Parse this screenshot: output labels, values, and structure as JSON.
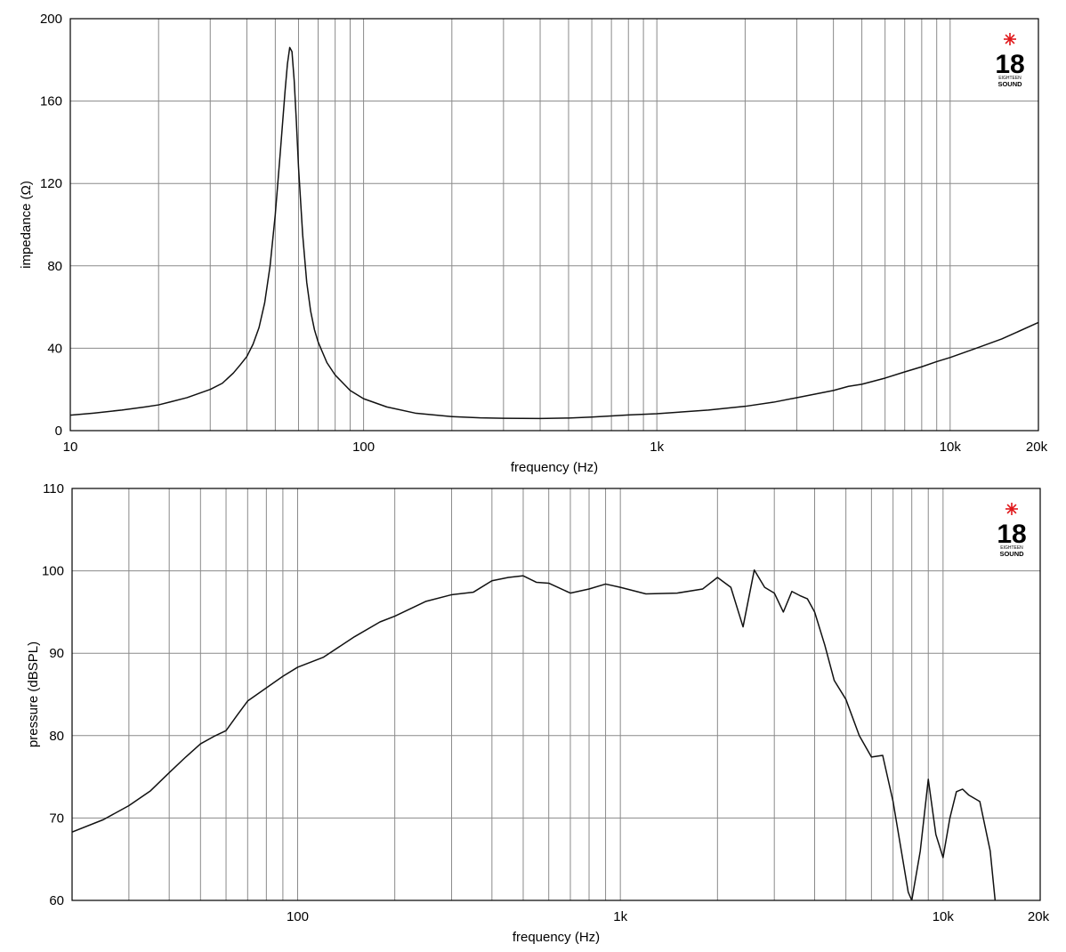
{
  "logo": {
    "digits": "18",
    "line1": "EIGHTEEN",
    "line2": "SOUND",
    "star_color": "#e0181b"
  },
  "chart_data": [
    {
      "type": "line",
      "title": "",
      "xlabel": "frequency (Hz)",
      "ylabel": "impedance (Ω)",
      "x_scale": "log",
      "xlim": [
        10,
        20000
      ],
      "ylim": [
        0,
        200
      ],
      "grid": true,
      "x_ticks": [
        {
          "value": 10,
          "label": "10"
        },
        {
          "value": 100,
          "label": "100"
        },
        {
          "value": 1000,
          "label": "1k"
        },
        {
          "value": 10000,
          "label": "10k"
        },
        {
          "value": 20000,
          "label": "20k"
        }
      ],
      "y_ticks": [
        0,
        40,
        80,
        120,
        160,
        200
      ],
      "series": [
        {
          "x": [
            10,
            12,
            15,
            18,
            20,
            22,
            25,
            28,
            30,
            33,
            36,
            38,
            40,
            42,
            44,
            46,
            48,
            50,
            52,
            54,
            55,
            56,
            57,
            58,
            59,
            60,
            62,
            64,
            66,
            68,
            70,
            75,
            80,
            90,
            100,
            120,
            150,
            200,
            250,
            300,
            400,
            500,
            600,
            700,
            800,
            1000,
            1200,
            1500,
            2000,
            2500,
            3000,
            4000,
            4500,
            5000,
            6000,
            7000,
            8000,
            9000,
            10000,
            12000,
            15000,
            20000
          ],
          "y": [
            7.5,
            8.5,
            10,
            11.5,
            12.5,
            14,
            16,
            18.5,
            20,
            23,
            28,
            32,
            36,
            42,
            50,
            62,
            80,
            105,
            135,
            165,
            178,
            186,
            184,
            170,
            150,
            128,
            95,
            72,
            58,
            49,
            43,
            33,
            27,
            19.5,
            15.5,
            11.5,
            8.5,
            6.8,
            6.2,
            6.0,
            5.9,
            6.1,
            6.6,
            7.1,
            7.6,
            8.2,
            9.0,
            10.0,
            11.8,
            13.8,
            16.0,
            19.5,
            21.5,
            22.5,
            25.5,
            28.5,
            31.0,
            33.5,
            35.5,
            39.5,
            44.5,
            52.5
          ]
        }
      ]
    },
    {
      "type": "line",
      "title": "",
      "xlabel": "frequency (Hz)",
      "ylabel": "pressure (dBSPL)",
      "x_scale": "log",
      "xlim": [
        20,
        20000
      ],
      "ylim": [
        60,
        110
      ],
      "grid": true,
      "x_ticks": [
        {
          "value": 100,
          "label": "100"
        },
        {
          "value": 1000,
          "label": "1k"
        },
        {
          "value": 10000,
          "label": "10k"
        },
        {
          "value": 20000,
          "label": "20k"
        }
      ],
      "y_ticks": [
        60,
        70,
        80,
        90,
        100,
        110
      ],
      "series": [
        {
          "x": [
            20,
            25,
            30,
            35,
            40,
            45,
            50,
            55,
            60,
            65,
            70,
            80,
            90,
            100,
            120,
            150,
            180,
            200,
            250,
            300,
            350,
            400,
            450,
            500,
            550,
            600,
            700,
            800,
            900,
            1000,
            1200,
            1500,
            1800,
            2000,
            2200,
            2400,
            2600,
            2800,
            3000,
            3200,
            3400,
            3600,
            3800,
            4000,
            4300,
            4600,
            5000,
            5500,
            6000,
            6500,
            7000,
            7500,
            7800,
            8000,
            8500,
            9000,
            9500,
            10000,
            10500,
            11000,
            11500,
            12000,
            13000,
            14000,
            14500
          ],
          "y": [
            68.3,
            69.8,
            71.5,
            73.3,
            75.5,
            77.4,
            79.0,
            79.9,
            80.6,
            82.5,
            84.2,
            85.8,
            87.2,
            88.3,
            89.5,
            92.0,
            93.8,
            94.5,
            96.3,
            97.1,
            97.4,
            98.8,
            99.2,
            99.4,
            98.6,
            98.5,
            97.3,
            97.8,
            98.4,
            98.0,
            97.2,
            97.3,
            97.8,
            99.2,
            98.0,
            93.2,
            100.1,
            98.0,
            97.3,
            95.0,
            97.5,
            97.0,
            96.6,
            95.0,
            91.0,
            86.7,
            84.4,
            80.0,
            77.4,
            77.6,
            72.0,
            65.0,
            61.0,
            60.0,
            66.0,
            74.7,
            68.0,
            65.2,
            70.0,
            73.2,
            73.5,
            72.8,
            72.0,
            66.0,
            60.0
          ]
        }
      ]
    }
  ]
}
